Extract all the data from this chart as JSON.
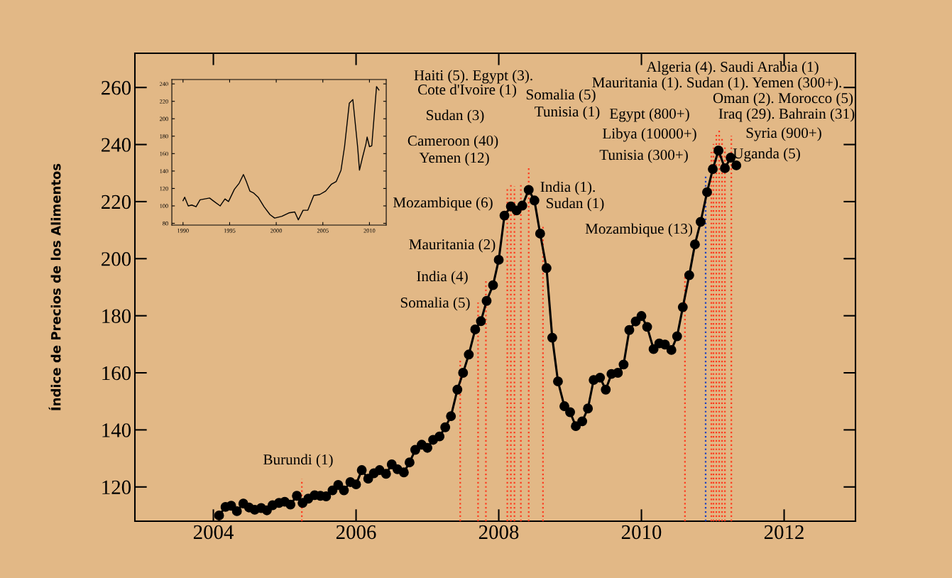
{
  "chart_data": [
    {
      "type": "line",
      "ylabel": "Índice de Precios de los Alimentos",
      "color": "#000000",
      "marker": "circle",
      "line_style": "solid",
      "grid": false,
      "legend": false,
      "x": [
        2004.08,
        2004.17,
        2004.25,
        2004.33,
        2004.42,
        2004.5,
        2004.58,
        2004.67,
        2004.75,
        2004.83,
        2004.92,
        2005.0,
        2005.08,
        2005.17,
        2005.25,
        2005.33,
        2005.42,
        2005.5,
        2005.58,
        2005.67,
        2005.75,
        2005.83,
        2005.92,
        2006.0,
        2006.08,
        2006.17,
        2006.25,
        2006.33,
        2006.42,
        2006.5,
        2006.58,
        2006.67,
        2006.75,
        2006.83,
        2006.92,
        2007.0,
        2007.08,
        2007.17,
        2007.25,
        2007.33,
        2007.42,
        2007.5,
        2007.58,
        2007.67,
        2007.75,
        2007.83,
        2007.92,
        2008.0,
        2008.08,
        2008.17,
        2008.25,
        2008.33,
        2008.42,
        2008.5,
        2008.58,
        2008.67,
        2008.75,
        2008.83,
        2008.92,
        2009.0,
        2009.08,
        2009.17,
        2009.25,
        2009.33,
        2009.42,
        2009.5,
        2009.58,
        2009.67,
        2009.75,
        2009.83,
        2009.92,
        2010.0,
        2010.08,
        2010.17,
        2010.25,
        2010.33,
        2010.42,
        2010.5,
        2010.58,
        2010.67,
        2010.75,
        2010.83,
        2010.92,
        2011.0,
        2011.08,
        2011.17,
        2011.25,
        2011.33
      ],
      "values": [
        110.0,
        113.0,
        113.4,
        111.5,
        114.2,
        112.8,
        112.0,
        112.6,
        111.8,
        113.6,
        114.4,
        114.8,
        113.8,
        116.9,
        114.4,
        115.9,
        117.1,
        116.9,
        116.7,
        118.8,
        120.7,
        118.8,
        121.7,
        120.9,
        125.9,
        122.9,
        124.8,
        125.9,
        124.6,
        127.9,
        126.2,
        125.1,
        128.6,
        133.0,
        134.8,
        133.7,
        136.5,
        137.7,
        140.9,
        144.8,
        154.1,
        160.0,
        166.4,
        175.2,
        178.1,
        185.2,
        190.7,
        199.6,
        215.1,
        218.3,
        216.9,
        218.6,
        224.1,
        220.4,
        208.8,
        196.7,
        172.3,
        157.0,
        148.3,
        146.2,
        141.3,
        143.0,
        147.5,
        157.5,
        158.3,
        154.1,
        159.6,
        160.0,
        162.9,
        175.0,
        178.0,
        179.9,
        176.1,
        168.3,
        170.3,
        169.9,
        168.0,
        172.8,
        183.0,
        194.2,
        205.0,
        212.9,
        223.3,
        231.4,
        237.9,
        231.7,
        235.4,
        232.7
      ],
      "xlim": [
        2002.9,
        2013.0
      ],
      "ylim": [
        108,
        272
      ],
      "xticks": [
        2004,
        2006,
        2008,
        2010,
        2012
      ],
      "yticks": [
        120,
        140,
        160,
        180,
        200,
        220,
        240,
        260
      ],
      "ref_lines": [
        {
          "axis": "x",
          "value": 2005.24,
          "color": "#ff3b1f",
          "line_style": "dotted"
        },
        {
          "axis": "x",
          "value": 2007.46,
          "color": "#ff3b1f",
          "line_style": "dotted"
        },
        {
          "axis": "x",
          "value": 2007.71,
          "color": "#ff3b1f",
          "line_style": "dotted"
        },
        {
          "axis": "x",
          "value": 2007.82,
          "color": "#ff3b1f",
          "line_style": "dotted"
        },
        {
          "axis": "x",
          "value": 2008.12,
          "color": "#ff3b1f",
          "line_style": "dotted"
        },
        {
          "axis": "x",
          "value": 2008.17,
          "color": "#ff3b1f",
          "line_style": "dotted"
        },
        {
          "axis": "x",
          "value": 2008.22,
          "color": "#ff3b1f",
          "line_style": "dotted"
        },
        {
          "axis": "x",
          "value": 2008.31,
          "color": "#ff3b1f",
          "line_style": "dotted"
        },
        {
          "axis": "x",
          "value": 2008.42,
          "color": "#ff3b1f",
          "line_style": "dotted"
        },
        {
          "axis": "x",
          "value": 2008.62,
          "color": "#ff3b1f",
          "line_style": "dotted"
        },
        {
          "axis": "x",
          "value": 2010.61,
          "color": "#ff3b1f",
          "line_style": "dotted"
        },
        {
          "axis": "x",
          "value": 2010.9,
          "color": "#1a3fc0",
          "line_style": "dotted"
        },
        {
          "axis": "x",
          "value": 2010.98,
          "color": "#ff3b1f",
          "line_style": "dotted"
        },
        {
          "axis": "x",
          "value": 2011.01,
          "color": "#ff3b1f",
          "line_style": "dotted"
        },
        {
          "axis": "x",
          "value": 2011.05,
          "color": "#ff3b1f",
          "line_style": "dotted"
        },
        {
          "axis": "x",
          "value": 2011.09,
          "color": "#ff3b1f",
          "line_style": "dotted"
        },
        {
          "axis": "x",
          "value": 2011.13,
          "color": "#ff3b1f",
          "line_style": "dotted"
        },
        {
          "axis": "x",
          "value": 2011.17,
          "color": "#ff3b1f",
          "line_style": "dotted"
        },
        {
          "axis": "x",
          "value": 2011.26,
          "color": "#ff3b1f",
          "line_style": "dotted"
        }
      ],
      "annotations": [
        "Burundi (1)",
        "Somalia (5)",
        "India (4)",
        "Mauritania (2)",
        "Mozambique (6)",
        "Yemen (12)",
        "Cameroon (40)",
        "Sudan (3)",
        "Cote d'Ivoire (1)",
        "Haiti (5). Egypt (3).",
        "Somalia (5)",
        "Tunisia (1)",
        "India (1).",
        "Sudan (1)",
        "Mozambique (13)",
        "Tunisia (300+)",
        "Libya (10000+)",
        "Egypt (800+)",
        "Algeria (4). Saudi Arabia (1)",
        "Mauritania (1). Sudan (1). Yemen (300+).",
        "Oman (2). Morocco (5)",
        "Iraq (29). Bahrain (31)",
        "Syria (900+)",
        "Uganda (5)"
      ]
    },
    {
      "type": "line",
      "color": "#000000",
      "marker": "none",
      "line_style": "solid",
      "grid": false,
      "legend": false,
      "x": [
        1990.0,
        1990.18,
        1990.56,
        1990.94,
        1991.4,
        1991.83,
        1992.34,
        1992.85,
        1993.35,
        1993.99,
        1994.5,
        1994.88,
        1995.51,
        1996.02,
        1996.48,
        1996.79,
        1997.17,
        1997.55,
        1998.06,
        1998.69,
        1999.33,
        1999.83,
        2000.6,
        2001.36,
        2001.99,
        2002.37,
        2002.88,
        2003.39,
        2004.03,
        2004.66,
        2005.3,
        2005.93,
        2006.44,
        2006.95,
        2007.33,
        2007.84,
        2008.22,
        2008.73,
        2008.93,
        2009.24,
        2009.62,
        2009.75,
        2010.0,
        2010.25,
        2010.76,
        2011.02
      ],
      "values": [
        106,
        110,
        100,
        101,
        99,
        107,
        108,
        109,
        105,
        100,
        108,
        105,
        119,
        126,
        136,
        128,
        117,
        115,
        110,
        99,
        90,
        86,
        88,
        92,
        93,
        84,
        95,
        95,
        112,
        113,
        117,
        125,
        128,
        141,
        168,
        218,
        222,
        168,
        141,
        155,
        171,
        179,
        168,
        169,
        237,
        233
      ],
      "xlim": [
        1988.8,
        2011.8
      ],
      "ylim": [
        78,
        245
      ],
      "xticks": [
        1990,
        1995,
        2000,
        2005,
        2010
      ],
      "yticks": [
        80,
        100,
        120,
        140,
        160,
        180,
        200,
        220,
        240
      ]
    }
  ]
}
